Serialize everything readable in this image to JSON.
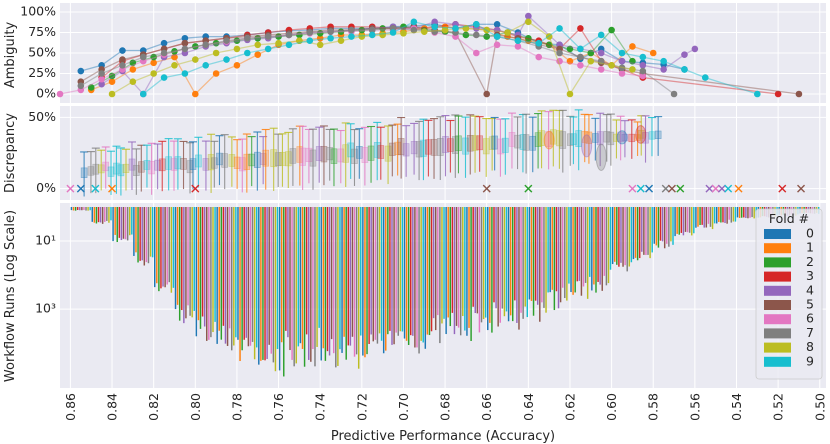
{
  "chart_data": {
    "type": "composite",
    "xlabel": "Predictive Performance (Accuracy)",
    "x_direction": "descending",
    "xlim": [
      0.865,
      0.497
    ],
    "x_ticks": [
      "0.86",
      "0.84",
      "0.82",
      "0.80",
      "0.78",
      "0.76",
      "0.74",
      "0.72",
      "0.70",
      "0.68",
      "0.66",
      "0.64",
      "0.62",
      "0.60",
      "0.58",
      "0.56",
      "0.54",
      "0.52",
      "0.50"
    ],
    "x_tick_values": [
      0.86,
      0.84,
      0.82,
      0.8,
      0.78,
      0.76,
      0.74,
      0.72,
      0.7,
      0.68,
      0.66,
      0.64,
      0.62,
      0.6,
      0.58,
      0.56,
      0.54,
      0.52,
      0.5
    ],
    "palette": [
      "#1f77b4",
      "#ff7f0e",
      "#2ca02c",
      "#d62728",
      "#9467bd",
      "#8c564b",
      "#e377c2",
      "#7f7f7f",
      "#bcbd22",
      "#17becf"
    ],
    "background": "#eaeaf2",
    "legend": {
      "title": "Fold #",
      "placement": "right",
      "entries": [
        "0",
        "1",
        "2",
        "3",
        "4",
        "5",
        "6",
        "7",
        "8",
        "9"
      ]
    },
    "panels": {
      "ambiguity": {
        "type": "line",
        "ylabel": "Ambiguity",
        "ylim": [
          0,
          100
        ],
        "y_ticks": [
          "0%",
          "25%",
          "50%",
          "75%",
          "100%"
        ],
        "y_tick_values": [
          0,
          25,
          50,
          75,
          100
        ],
        "series": [
          {
            "name": "0",
            "x": [
              0.855,
              0.845,
              0.835,
              0.825,
              0.815,
              0.805,
              0.795,
              0.785,
              0.775,
              0.765,
              0.755,
              0.745,
              0.735,
              0.725,
              0.715,
              0.705,
              0.695,
              0.685,
              0.675,
              0.665,
              0.655,
              0.645,
              0.635,
              0.625,
              0.615,
              0.605,
              0.595,
              0.585,
              0.575,
              0.565
            ],
            "y": [
              28,
              35,
              53,
              53,
              62,
              68,
              70,
              70,
              72,
              75,
              77,
              78,
              80,
              80,
              80,
              82,
              83,
              85,
              80,
              85,
              85,
              75,
              62,
              60,
              43,
              55,
              40,
              38,
              36,
              30
            ]
          },
          {
            "name": "1",
            "x": [
              0.85,
              0.84,
              0.83,
              0.82,
              0.81,
              0.8,
              0.79,
              0.78,
              0.77,
              0.76,
              0.75,
              0.74,
              0.73,
              0.72,
              0.71,
              0.7,
              0.69,
              0.68,
              0.67,
              0.66,
              0.65,
              0.64,
              0.63,
              0.62,
              0.61,
              0.6,
              0.59,
              0.58
            ],
            "y": [
              5,
              15,
              30,
              38,
              45,
              0,
              25,
              35,
              48,
              60,
              65,
              68,
              72,
              72,
              74,
              76,
              80,
              82,
              80,
              78,
              70,
              65,
              60,
              40,
              50,
              35,
              58,
              50
            ]
          },
          {
            "name": "2",
            "x": [
              0.85,
              0.84,
              0.83,
              0.82,
              0.81,
              0.8,
              0.79,
              0.78,
              0.77,
              0.76,
              0.75,
              0.74,
              0.73,
              0.72,
              0.71,
              0.7,
              0.69,
              0.68,
              0.67,
              0.66,
              0.65,
              0.64,
              0.63,
              0.62,
              0.61,
              0.6,
              0.59
            ],
            "y": [
              8,
              22,
              38,
              45,
              52,
              58,
              62,
              65,
              68,
              70,
              72,
              74,
              76,
              78,
              80,
              82,
              78,
              76,
              72,
              70,
              75,
              68,
              60,
              55,
              50,
              78,
              40
            ]
          },
          {
            "name": "3",
            "x": [
              0.845,
              0.835,
              0.825,
              0.815,
              0.805,
              0.795,
              0.785,
              0.775,
              0.765,
              0.755,
              0.745,
              0.735,
              0.725,
              0.715,
              0.705,
              0.695,
              0.685,
              0.675,
              0.665,
              0.655,
              0.645,
              0.635,
              0.625,
              0.615,
              0.605,
              0.595,
              0.585,
              0.52
            ],
            "y": [
              20,
              40,
              48,
              55,
              62,
              65,
              68,
              72,
              75,
              78,
              80,
              82,
              82,
              82,
              80,
              80,
              82,
              85,
              82,
              78,
              70,
              65,
              55,
              80,
              40,
              30,
              20,
              0
            ]
          },
          {
            "name": "4",
            "x": [
              0.845,
              0.835,
              0.825,
              0.815,
              0.805,
              0.795,
              0.785,
              0.775,
              0.765,
              0.755,
              0.745,
              0.735,
              0.725,
              0.715,
              0.705,
              0.695,
              0.685,
              0.675,
              0.665,
              0.655,
              0.645,
              0.64,
              0.625,
              0.615,
              0.605,
              0.595,
              0.585,
              0.575,
              0.565,
              0.56
            ],
            "y": [
              12,
              28,
              0,
              45,
              50,
              58,
              62,
              66,
              68,
              72,
              75,
              76,
              78,
              80,
              82,
              80,
              88,
              85,
              80,
              78,
              72,
              95,
              60,
              55,
              50,
              40,
              35,
              30,
              48,
              55
            ]
          },
          {
            "name": "5",
            "x": [
              0.855,
              0.845,
              0.835,
              0.825,
              0.815,
              0.805,
              0.795,
              0.785,
              0.775,
              0.765,
              0.755,
              0.745,
              0.735,
              0.725,
              0.715,
              0.705,
              0.695,
              0.685,
              0.675,
              0.66,
              0.655,
              0.645,
              0.635,
              0.625,
              0.615,
              0.605,
              0.595,
              0.585,
              0.51
            ],
            "y": [
              15,
              30,
              42,
              48,
              55,
              62,
              65,
              68,
              70,
              72,
              74,
              76,
              78,
              78,
              80,
              80,
              82,
              78,
              75,
              0,
              72,
              68,
              60,
              55,
              45,
              38,
              30,
              25,
              0
            ]
          },
          {
            "name": "6",
            "x": [
              0.865,
              0.855,
              0.845,
              0.835,
              0.825,
              0.815,
              0.805,
              0.795,
              0.785,
              0.775,
              0.765,
              0.755,
              0.745,
              0.735,
              0.725,
              0.715,
              0.705,
              0.695,
              0.685,
              0.675,
              0.665,
              0.655,
              0.645,
              0.635,
              0.625,
              0.615,
              0.605,
              0.595,
              0.585
            ],
            "y": [
              0,
              5,
              18,
              30,
              40,
              48,
              55,
              60,
              64,
              68,
              70,
              72,
              74,
              76,
              76,
              78,
              78,
              80,
              75,
              70,
              50,
              60,
              58,
              45,
              40,
              35,
              30,
              25,
              22
            ]
          },
          {
            "name": "7",
            "x": [
              0.855,
              0.845,
              0.835,
              0.825,
              0.815,
              0.805,
              0.795,
              0.785,
              0.775,
              0.765,
              0.755,
              0.745,
              0.735,
              0.725,
              0.715,
              0.705,
              0.695,
              0.685,
              0.675,
              0.665,
              0.655,
              0.645,
              0.635,
              0.625,
              0.615,
              0.605,
              0.595,
              0.585,
              0.57
            ],
            "y": [
              10,
              25,
              35,
              45,
              50,
              55,
              60,
              65,
              68,
              70,
              72,
              75,
              76,
              78,
              78,
              80,
              78,
              76,
              75,
              72,
              70,
              65,
              58,
              50,
              45,
              40,
              32,
              28,
              0
            ]
          },
          {
            "name": "8",
            "x": [
              0.84,
              0.83,
              0.82,
              0.81,
              0.8,
              0.79,
              0.78,
              0.77,
              0.76,
              0.75,
              0.74,
              0.73,
              0.72,
              0.71,
              0.7,
              0.69,
              0.68,
              0.67,
              0.66,
              0.65,
              0.64,
              0.63,
              0.62,
              0.61,
              0.6,
              0.59
            ],
            "y": [
              0,
              15,
              25,
              35,
              42,
              50,
              55,
              60,
              62,
              65,
              60,
              65,
              70,
              72,
              74,
              76,
              78,
              80,
              78,
              75,
              88,
              70,
              0,
              40,
              35,
              30
            ]
          },
          {
            "name": "9",
            "x": [
              0.825,
              0.815,
              0.805,
              0.795,
              0.785,
              0.775,
              0.765,
              0.755,
              0.745,
              0.735,
              0.725,
              0.715,
              0.705,
              0.695,
              0.685,
              0.675,
              0.665,
              0.655,
              0.645,
              0.635,
              0.625,
              0.615,
              0.605,
              0.595,
              0.585,
              0.575,
              0.565,
              0.555,
              0.53
            ],
            "y": [
              0,
              20,
              25,
              35,
              42,
              50,
              55,
              60,
              65,
              68,
              70,
              72,
              75,
              88,
              82,
              80,
              85,
              70,
              65,
              62,
              80,
              55,
              72,
              50,
              45,
              40,
              30,
              20,
              0
            ]
          }
        ]
      },
      "discrepancy": {
        "type": "box_violin",
        "ylabel": "Discrepancy",
        "ylim": [
          -8,
          58
        ],
        "y_ticks": [
          "0%",
          "50%"
        ],
        "y_tick_values": [
          0,
          50
        ],
        "trend_low": [
          [
            0.85,
            8
          ],
          [
            0.8,
            10
          ],
          [
            0.75,
            12
          ],
          [
            0.7,
            18
          ],
          [
            0.65,
            22
          ],
          [
            0.62,
            25
          ],
          [
            0.6,
            30
          ],
          [
            0.58,
            32
          ]
        ],
        "trend_high": [
          [
            0.85,
            18
          ],
          [
            0.8,
            26
          ],
          [
            0.75,
            32
          ],
          [
            0.7,
            38
          ],
          [
            0.65,
            42
          ],
          [
            0.62,
            44
          ],
          [
            0.6,
            42
          ],
          [
            0.58,
            40
          ]
        ],
        "outliers_x": [
          {
            "x": 0.86,
            "fold": 6
          },
          {
            "x": 0.855,
            "fold": 0
          },
          {
            "x": 0.848,
            "fold": 9
          },
          {
            "x": 0.84,
            "fold": 1
          },
          {
            "x": 0.8,
            "fold": 3
          },
          {
            "x": 0.66,
            "fold": 5
          },
          {
            "x": 0.64,
            "fold": 2
          },
          {
            "x": 0.59,
            "fold": 6
          },
          {
            "x": 0.586,
            "fold": 9
          },
          {
            "x": 0.582,
            "fold": 0
          },
          {
            "x": 0.574,
            "fold": 7
          },
          {
            "x": 0.571,
            "fold": 5
          },
          {
            "x": 0.567,
            "fold": 2
          },
          {
            "x": 0.553,
            "fold": 4
          },
          {
            "x": 0.55,
            "fold": 6
          },
          {
            "x": 0.547,
            "fold": 4
          },
          {
            "x": 0.544,
            "fold": 9
          },
          {
            "x": 0.539,
            "fold": 1
          },
          {
            "x": 0.518,
            "fold": 3
          },
          {
            "x": 0.509,
            "fold": 5
          }
        ]
      },
      "runs": {
        "type": "bar",
        "ylabel": "Workflow Runs (Log Scale)",
        "y_scale": "log",
        "y_ticks": [
          "10¹",
          "10³"
        ],
        "y_tick_values": [
          1,
          3
        ],
        "bin_width": 0.01,
        "bins_start": [
          0.86,
          0.85,
          0.84,
          0.83,
          0.82,
          0.81,
          0.8,
          0.79,
          0.78,
          0.77,
          0.76,
          0.75,
          0.74,
          0.73,
          0.72,
          0.71,
          0.7,
          0.69,
          0.68,
          0.67,
          0.66,
          0.65,
          0.64,
          0.63,
          0.62,
          0.61,
          0.6,
          0.59,
          0.58,
          0.57,
          0.56,
          0.55,
          0.54,
          0.53,
          0.52,
          0.51
        ],
        "totals_log10": [
          0.1,
          0.45,
          0.95,
          1.6,
          2.45,
          3.25,
          3.85,
          4.25,
          4.45,
          4.5,
          4.45,
          4.4,
          4.4,
          4.35,
          4.25,
          4.15,
          4.05,
          3.85,
          3.7,
          3.55,
          3.45,
          3.25,
          3.05,
          2.8,
          2.55,
          2.3,
          1.9,
          1.5,
          1.1,
          0.8,
          0.6,
          0.45,
          0.35,
          0.3,
          0.25,
          0.2
        ],
        "fold_factors": [
          0.97,
          0.94,
          1.0,
          0.92,
          0.95,
          0.99,
          0.93,
          0.96,
          0.98,
          0.91
        ]
      }
    }
  }
}
